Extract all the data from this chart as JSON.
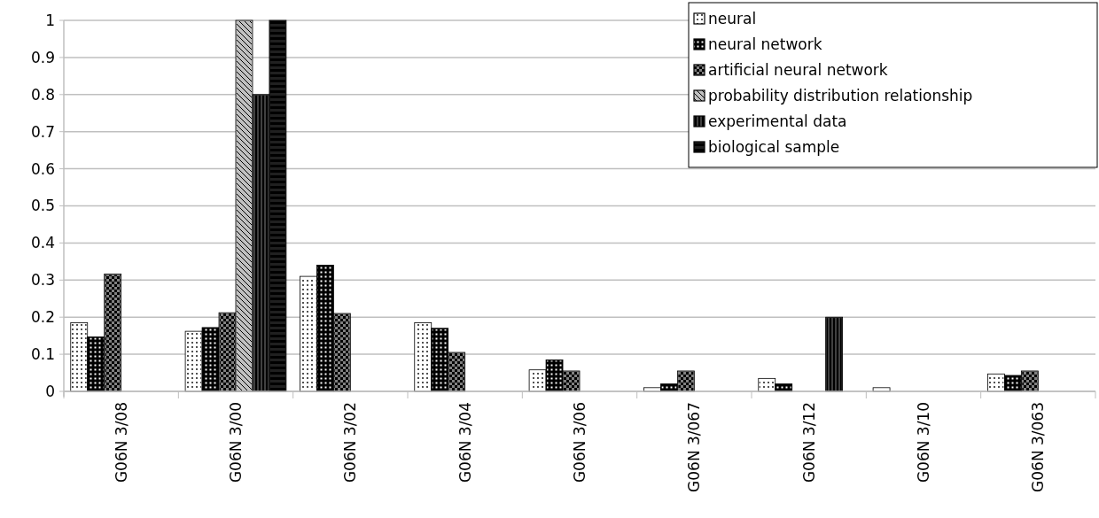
{
  "chart_data": {
    "type": "bar",
    "categories": [
      "G06N 3/08",
      "G06N 3/00",
      "G06N 3/02",
      "G06N 3/04",
      "G06N 3/06",
      "G06N 3/067",
      "G06N 3/12",
      "G06N 3/10",
      "G06N 3/063"
    ],
    "series": [
      {
        "name": "neural",
        "color": "#ffffff",
        "values": [
          0.185,
          0.162,
          0.31,
          0.185,
          0.058,
          0.01,
          0.035,
          0.01,
          0.047
        ]
      },
      {
        "name": "neural network",
        "color": "#000000",
        "values": [
          0.147,
          0.172,
          0.34,
          0.17,
          0.085,
          0.02,
          0.02,
          null,
          0.043
        ]
      },
      {
        "name": "artificial neural network",
        "color": "#808080",
        "values": [
          0.316,
          0.212,
          0.21,
          0.105,
          0.055,
          0.055,
          null,
          null,
          0.055
        ]
      },
      {
        "name": "probability distribution relationship",
        "color": "#c0c0c0",
        "values": [
          null,
          1,
          null,
          null,
          null,
          null,
          null,
          null,
          null
        ]
      },
      {
        "name": "experimental data",
        "color": "#404040",
        "values": [
          null,
          0.8,
          null,
          null,
          null,
          null,
          0.2,
          null,
          null
        ]
      },
      {
        "name": "biological sample",
        "color": "#202020",
        "values": [
          null,
          1,
          null,
          null,
          null,
          null,
          null,
          null,
          null
        ]
      }
    ],
    "ylim": [
      0,
      1
    ],
    "yticks": [
      0,
      0.1,
      0.2,
      0.3,
      0.4,
      0.5,
      0.6,
      0.7,
      0.8,
      0.9,
      1
    ],
    "grid": "y",
    "legend": "top right"
  }
}
